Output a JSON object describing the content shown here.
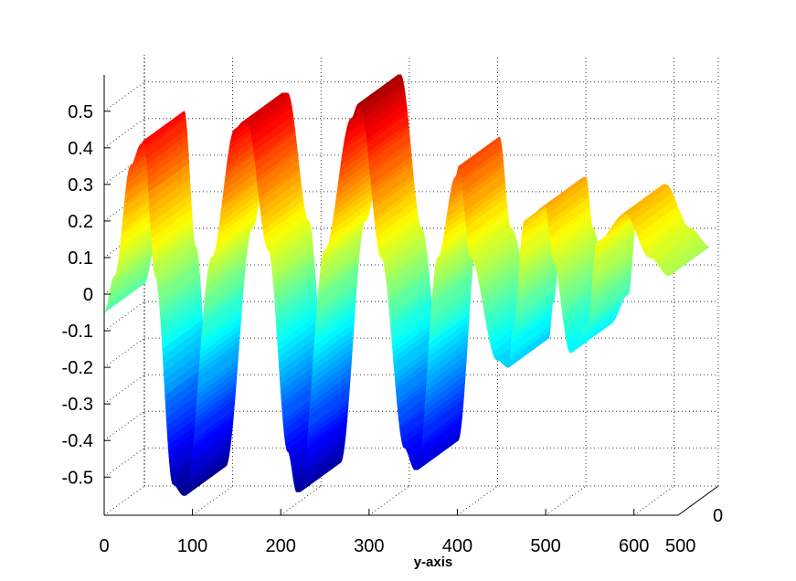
{
  "chart_data": {
    "type": "surface",
    "colormap": "jet",
    "grid": true,
    "title": "",
    "xlabel": "y-axis",
    "ylabel": "",
    "zlabel": "",
    "y_ticks": [
      "0",
      "100",
      "200",
      "300",
      "400",
      "500",
      "600"
    ],
    "depth_ticks": [
      "500",
      "0"
    ],
    "z_ticks": [
      "-0.5",
      "-0.4",
      "-0.3",
      "-0.2",
      "-0.1",
      "0",
      "0.1",
      "0.2",
      "0.3",
      "0.4",
      "0.5"
    ],
    "ylim": [
      0,
      650
    ],
    "zlim": [
      -0.55,
      0.55
    ],
    "clim": [
      -0.57,
      0.57
    ],
    "profile": {
      "description": "surface values along y (constant in depth direction)",
      "y": [
        0,
        12,
        30,
        42,
        45,
        58,
        78,
        90,
        92,
        122,
        148,
        157,
        162,
        186,
        208,
        218,
        222,
        250,
        280,
        288,
        290,
        314,
        340,
        352,
        355,
        378,
        398,
        402,
        415,
        445,
        458,
        463,
        476,
        500,
        508,
        528,
        548,
        558,
        590,
        618,
        640
      ],
      "z": [
        -0.05,
        0.05,
        0.35,
        0.41,
        0.42,
        0.05,
        -0.52,
        -0.55,
        -0.55,
        0.1,
        0.45,
        0.47,
        0.47,
        0.12,
        -0.43,
        -0.54,
        -0.54,
        0.12,
        0.48,
        0.52,
        0.52,
        0.1,
        -0.42,
        -0.48,
        -0.48,
        0.1,
        0.32,
        0.35,
        0.1,
        -0.18,
        -0.2,
        -0.1,
        0.2,
        0.24,
        0.1,
        -0.16,
        -0.08,
        0.14,
        0.22,
        0.1,
        0.05
      ]
    }
  }
}
